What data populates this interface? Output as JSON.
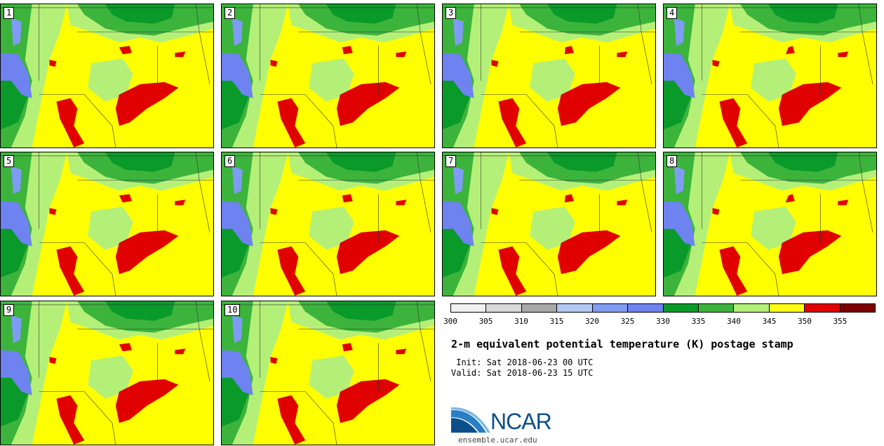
{
  "panels": [
    {
      "label": "1"
    },
    {
      "label": "2"
    },
    {
      "label": "3"
    },
    {
      "label": "4"
    },
    {
      "label": "5"
    },
    {
      "label": "6"
    },
    {
      "label": "7"
    },
    {
      "label": "8"
    },
    {
      "label": "9"
    },
    {
      "label": "10"
    }
  ],
  "colorbar": {
    "colors": [
      "#f0f0f0",
      "#d9d9d9",
      "#a8a8a8",
      "#b4c8f5",
      "#7f9cf5",
      "#6e82f0",
      "#0a9a2a",
      "#3cb43c",
      "#b4f078",
      "#ffff14",
      "#e00000",
      "#800000"
    ],
    "ticks": [
      "300",
      "305",
      "310",
      "315",
      "320",
      "325",
      "330",
      "335",
      "340",
      "345",
      "350",
      "355"
    ]
  },
  "title": "2-m equivalent potential temperature (K) postage stamp",
  "init": " Init: Sat 2018-06-23 00 UTC",
  "valid": "Valid: Sat 2018-06-23 15 UTC",
  "logo": {
    "text": "NCAR",
    "site": "ensemble.ucar.edu"
  }
}
